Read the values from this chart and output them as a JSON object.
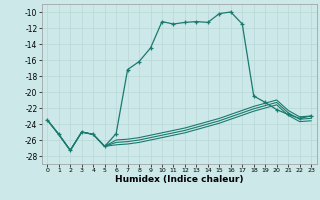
{
  "xlabel": "Humidex (Indice chaleur)",
  "ylabel": "",
  "background_color": "#cce8e8",
  "grid_color": "#b8d8d8",
  "line_color": "#1a7a6e",
  "xlim": [
    -0.5,
    23.5
  ],
  "ylim": [
    -29,
    -9
  ],
  "xticks": [
    0,
    1,
    2,
    3,
    4,
    5,
    6,
    7,
    8,
    9,
    10,
    11,
    12,
    13,
    14,
    15,
    16,
    17,
    18,
    19,
    20,
    21,
    22,
    23
  ],
  "yticks": [
    -28,
    -26,
    -24,
    -22,
    -20,
    -18,
    -16,
    -14,
    -12,
    -10
  ],
  "line1_x": [
    0,
    1,
    2,
    3,
    4,
    5,
    6,
    7,
    8,
    9,
    10,
    11,
    12,
    13,
    14,
    15,
    16,
    17,
    18,
    19,
    20,
    21,
    22,
    23
  ],
  "line1_y": [
    -23.5,
    -25.3,
    -27.3,
    -25.0,
    -25.3,
    -26.8,
    -25.2,
    -17.2,
    -16.2,
    -14.5,
    -11.2,
    -11.5,
    -11.3,
    -11.2,
    -11.3,
    -10.2,
    -10.0,
    -11.5,
    -20.5,
    -21.3,
    -22.2,
    -22.8,
    -23.3,
    -23.0
  ],
  "line2_x": [
    0,
    1,
    2,
    3,
    4,
    5,
    6,
    7,
    8,
    9,
    10,
    11,
    12,
    13,
    14,
    15,
    16,
    17,
    18,
    19,
    20,
    21,
    22,
    23
  ],
  "line2_y": [
    -23.5,
    -25.3,
    -27.3,
    -25.0,
    -25.3,
    -26.8,
    -26.0,
    -25.9,
    -25.7,
    -25.4,
    -25.1,
    -24.8,
    -24.5,
    -24.1,
    -23.7,
    -23.3,
    -22.8,
    -22.3,
    -21.8,
    -21.4,
    -21.0,
    -22.3,
    -23.1,
    -23.0
  ],
  "line3_x": [
    0,
    1,
    2,
    3,
    4,
    5,
    6,
    7,
    8,
    9,
    10,
    11,
    12,
    13,
    14,
    15,
    16,
    17,
    18,
    19,
    20,
    21,
    22,
    23
  ],
  "line3_y": [
    -23.5,
    -25.3,
    -27.3,
    -25.0,
    -25.3,
    -26.8,
    -26.3,
    -26.2,
    -26.0,
    -25.7,
    -25.4,
    -25.1,
    -24.8,
    -24.4,
    -24.0,
    -23.6,
    -23.1,
    -22.6,
    -22.1,
    -21.7,
    -21.3,
    -22.6,
    -23.4,
    -23.3
  ],
  "line4_x": [
    0,
    1,
    2,
    3,
    4,
    5,
    6,
    7,
    8,
    9,
    10,
    11,
    12,
    13,
    14,
    15,
    16,
    17,
    18,
    19,
    20,
    21,
    22,
    23
  ],
  "line4_y": [
    -23.5,
    -25.3,
    -27.3,
    -25.0,
    -25.3,
    -26.8,
    -26.6,
    -26.5,
    -26.3,
    -26.0,
    -25.7,
    -25.4,
    -25.1,
    -24.7,
    -24.3,
    -23.9,
    -23.4,
    -22.9,
    -22.4,
    -22.0,
    -21.6,
    -22.9,
    -23.7,
    -23.6
  ]
}
